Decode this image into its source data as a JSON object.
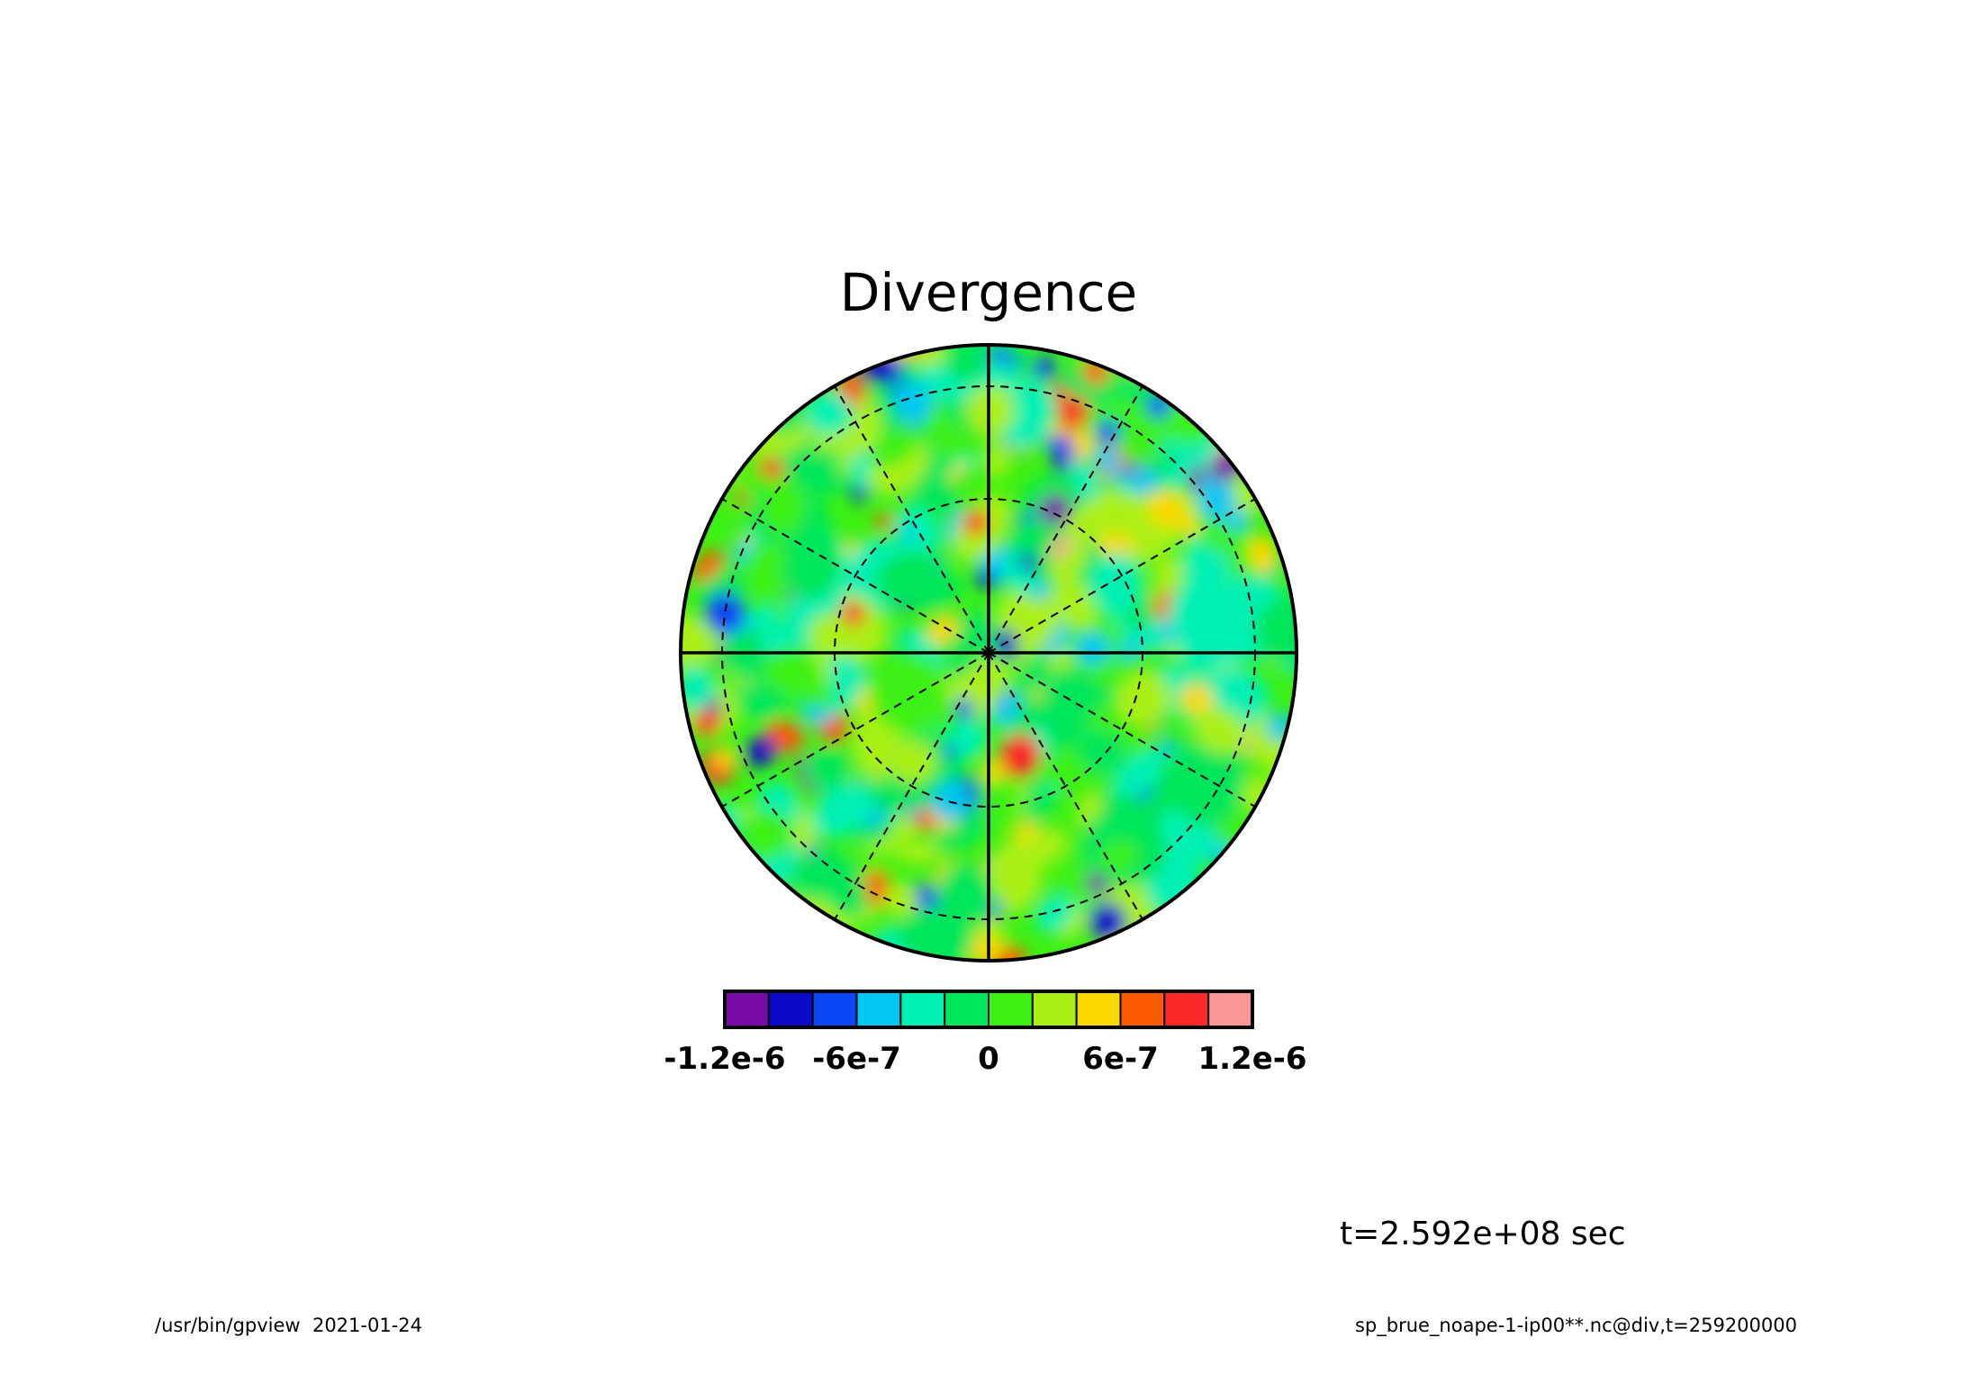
{
  "chart_data": {
    "type": "heatmap",
    "projection": "polar",
    "title": "Divergence",
    "colorbar": {
      "levels": [
        -1.2e-06,
        -1e-06,
        -8e-07,
        -6e-07,
        -4e-07,
        -2e-07,
        0,
        2e-07,
        4e-07,
        6e-07,
        8e-07,
        1e-06,
        1.2e-06
      ],
      "colors": [
        "#7a0aa8",
        "#0a0ac8",
        "#0a46f5",
        "#00c8f0",
        "#00f0b4",
        "#00e65a",
        "#3cf014",
        "#aaf014",
        "#fad700",
        "#fa5a00",
        "#fa2828",
        "#fa9696"
      ],
      "tick_labels": [
        "-1.2e-6",
        "-6e-7",
        "0",
        "6e-7",
        "1.2e-6"
      ]
    },
    "range": [
      -1.2e-06,
      1.2e-06
    ],
    "grid": true,
    "time_label": "t=2.592e+08 sec"
  },
  "footer": {
    "left": "/usr/bin/gpview  2021-01-24",
    "right": "sp_brue_noape-1-ip00**.nc@div,t=259200000"
  }
}
